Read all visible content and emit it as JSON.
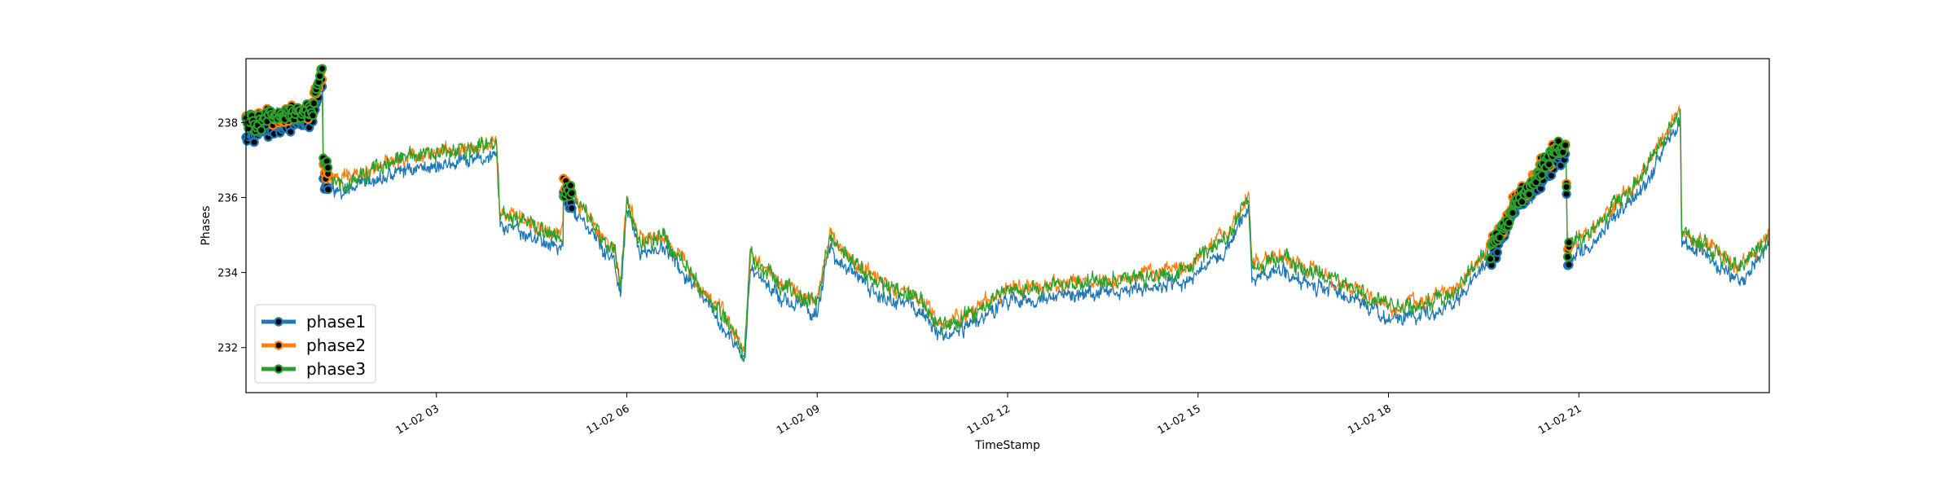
{
  "chart_data": {
    "type": "line",
    "title": "",
    "xlabel": "TimeStamp",
    "ylabel": "Phases",
    "x_ticks": [
      "11-02 03",
      "11-02 06",
      "11-02 09",
      "11-02 12",
      "11-02 15",
      "11-02 18",
      "11-02 21"
    ],
    "x_range_hours": [
      0.0,
      24.0
    ],
    "y_ticks": [
      232,
      234,
      236,
      238
    ],
    "ylim": [
      230.8,
      239.7
    ],
    "grid": false,
    "legend": {
      "position": "lower-left",
      "entries": [
        "phase1",
        "phase2",
        "phase3"
      ]
    },
    "series": [
      {
        "name": "phase1",
        "color": "#1f77b4",
        "offset": -0.25,
        "noise": 0.18
      },
      {
        "name": "phase2",
        "color": "#ff7f0e",
        "offset": 0.1,
        "noise": 0.18
      },
      {
        "name": "phase3",
        "color": "#2ca02c",
        "offset": 0.05,
        "noise": 0.2
      }
    ],
    "base_profile_hours": [
      0.0,
      0.5,
      1.0,
      1.2,
      1.22,
      1.5,
      2.5,
      3.5,
      3.95,
      4.0,
      4.5,
      5.0,
      5.0,
      5.3,
      5.8,
      5.9,
      6.0,
      6.2,
      6.6,
      7.2,
      7.6,
      7.85,
      7.95,
      8.5,
      9.0,
      9.2,
      9.5,
      10.0,
      10.5,
      11.0,
      11.3,
      12.0,
      13.0,
      14.0,
      14.8,
      15.5,
      15.8,
      15.85,
      16.3,
      17.5,
      18.0,
      18.5,
      19.0,
      19.6,
      20.0,
      20.5,
      20.8,
      20.82,
      21.2,
      21.6,
      22.0,
      22.5,
      22.6,
      22.62,
      23.0,
      23.5,
      24.0
    ],
    "base_profile_values": [
      238.0,
      238.1,
      238.2,
      239.2,
      236.6,
      236.3,
      237.0,
      237.2,
      237.4,
      235.5,
      235.2,
      234.9,
      236.3,
      235.6,
      234.5,
      233.6,
      235.9,
      234.8,
      234.9,
      233.5,
      232.6,
      231.8,
      234.4,
      233.5,
      233.2,
      234.9,
      234.3,
      233.6,
      233.4,
      232.5,
      232.8,
      233.5,
      233.6,
      233.8,
      234.0,
      235.0,
      236.0,
      234.1,
      234.3,
      233.5,
      233.0,
      233.1,
      233.4,
      234.6,
      235.8,
      236.9,
      237.4,
      234.6,
      235.0,
      235.8,
      236.5,
      238.0,
      238.2,
      235.0,
      234.7,
      234.0,
      234.9
    ],
    "marker_segments_hours": [
      [
        0.0,
        1.3
      ],
      [
        5.0,
        5.15
      ],
      [
        19.6,
        20.85
      ]
    ]
  }
}
